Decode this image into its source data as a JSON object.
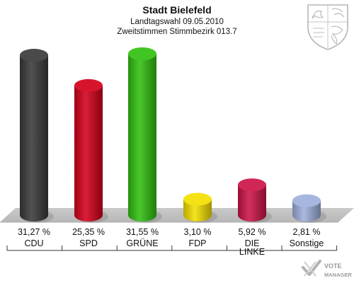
{
  "chart_data": {
    "type": "bar",
    "title": "Stadt Bielefeld",
    "subtitle_1": "Landtagswahl 09.05.2010",
    "subtitle_2": "Zweitstimmen Stimmbezirk 013.7",
    "categories": [
      "CDU",
      "SPD",
      "GRÜNE",
      "FDP",
      "DIE LINKE",
      "Sonstige"
    ],
    "category_lines": [
      [
        "CDU"
      ],
      [
        "SPD"
      ],
      [
        "GRÜNE"
      ],
      [
        "FDP"
      ],
      [
        "DIE",
        "LINKE"
      ],
      [
        "Sonstige"
      ]
    ],
    "values": [
      31.27,
      25.35,
      31.55,
      3.1,
      5.92,
      2.81
    ],
    "value_labels": [
      "31,27 %",
      "25,35 %",
      "31,55 %",
      "3,10 %",
      "5,92 %",
      "2,81 %"
    ],
    "colors": [
      "#3a3a3a",
      "#d4001c",
      "#30c010",
      "#f4e000",
      "#cc1447",
      "#9fb0dc"
    ],
    "ylim": [
      0,
      32
    ],
    "grid": false,
    "legend": "none"
  },
  "watermark": {
    "line1": "VOTE",
    "line2": "MANAGER"
  },
  "emblem_icon": "coat-of-arms-icon"
}
